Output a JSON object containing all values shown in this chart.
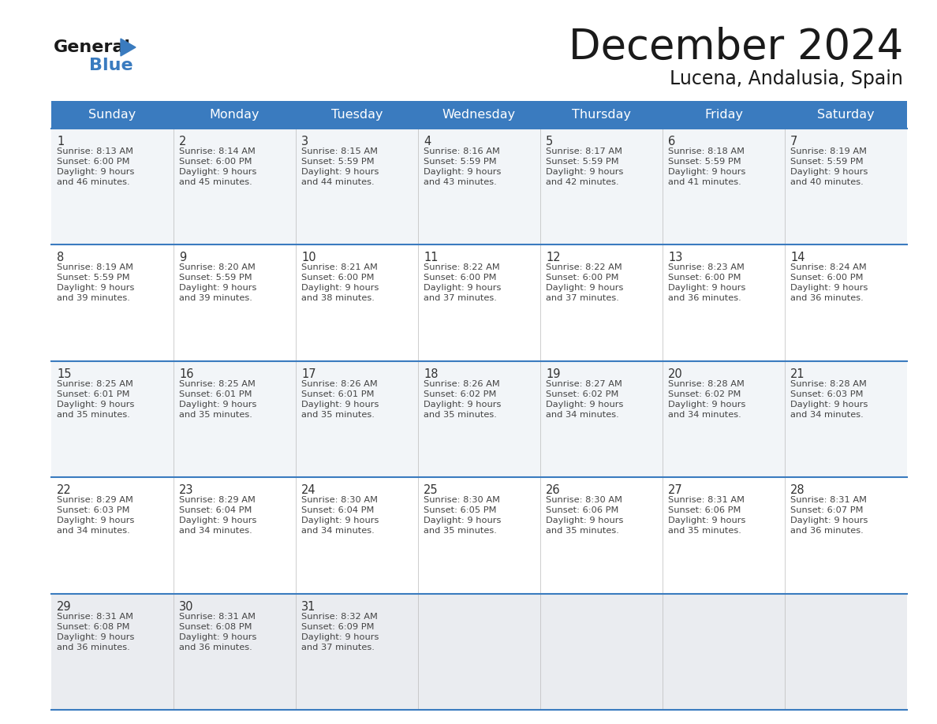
{
  "title": "December 2024",
  "subtitle": "Lucena, Andalusia, Spain",
  "header_bg": "#3a7bbf",
  "header_text_color": "#ffffff",
  "border_color": "#3a7bbf",
  "days_of_week": [
    "Sunday",
    "Monday",
    "Tuesday",
    "Wednesday",
    "Thursday",
    "Friday",
    "Saturday"
  ],
  "weeks": [
    [
      {
        "day": "1",
        "sunrise": "8:13 AM",
        "sunset": "6:00 PM",
        "daylight_h": "9 hours",
        "daylight_m": "and 46 minutes."
      },
      {
        "day": "2",
        "sunrise": "8:14 AM",
        "sunset": "6:00 PM",
        "daylight_h": "9 hours",
        "daylight_m": "and 45 minutes."
      },
      {
        "day": "3",
        "sunrise": "8:15 AM",
        "sunset": "5:59 PM",
        "daylight_h": "9 hours",
        "daylight_m": "and 44 minutes."
      },
      {
        "day": "4",
        "sunrise": "8:16 AM",
        "sunset": "5:59 PM",
        "daylight_h": "9 hours",
        "daylight_m": "and 43 minutes."
      },
      {
        "day": "5",
        "sunrise": "8:17 AM",
        "sunset": "5:59 PM",
        "daylight_h": "9 hours",
        "daylight_m": "and 42 minutes."
      },
      {
        "day": "6",
        "sunrise": "8:18 AM",
        "sunset": "5:59 PM",
        "daylight_h": "9 hours",
        "daylight_m": "and 41 minutes."
      },
      {
        "day": "7",
        "sunrise": "8:19 AM",
        "sunset": "5:59 PM",
        "daylight_h": "9 hours",
        "daylight_m": "and 40 minutes."
      }
    ],
    [
      {
        "day": "8",
        "sunrise": "8:19 AM",
        "sunset": "5:59 PM",
        "daylight_h": "9 hours",
        "daylight_m": "and 39 minutes."
      },
      {
        "day": "9",
        "sunrise": "8:20 AM",
        "sunset": "5:59 PM",
        "daylight_h": "9 hours",
        "daylight_m": "and 39 minutes."
      },
      {
        "day": "10",
        "sunrise": "8:21 AM",
        "sunset": "6:00 PM",
        "daylight_h": "9 hours",
        "daylight_m": "and 38 minutes."
      },
      {
        "day": "11",
        "sunrise": "8:22 AM",
        "sunset": "6:00 PM",
        "daylight_h": "9 hours",
        "daylight_m": "and 37 minutes."
      },
      {
        "day": "12",
        "sunrise": "8:22 AM",
        "sunset": "6:00 PM",
        "daylight_h": "9 hours",
        "daylight_m": "and 37 minutes."
      },
      {
        "day": "13",
        "sunrise": "8:23 AM",
        "sunset": "6:00 PM",
        "daylight_h": "9 hours",
        "daylight_m": "and 36 minutes."
      },
      {
        "day": "14",
        "sunrise": "8:24 AM",
        "sunset": "6:00 PM",
        "daylight_h": "9 hours",
        "daylight_m": "and 36 minutes."
      }
    ],
    [
      {
        "day": "15",
        "sunrise": "8:25 AM",
        "sunset": "6:01 PM",
        "daylight_h": "9 hours",
        "daylight_m": "and 35 minutes."
      },
      {
        "day": "16",
        "sunrise": "8:25 AM",
        "sunset": "6:01 PM",
        "daylight_h": "9 hours",
        "daylight_m": "and 35 minutes."
      },
      {
        "day": "17",
        "sunrise": "8:26 AM",
        "sunset": "6:01 PM",
        "daylight_h": "9 hours",
        "daylight_m": "and 35 minutes."
      },
      {
        "day": "18",
        "sunrise": "8:26 AM",
        "sunset": "6:02 PM",
        "daylight_h": "9 hours",
        "daylight_m": "and 35 minutes."
      },
      {
        "day": "19",
        "sunrise": "8:27 AM",
        "sunset": "6:02 PM",
        "daylight_h": "9 hours",
        "daylight_m": "and 34 minutes."
      },
      {
        "day": "20",
        "sunrise": "8:28 AM",
        "sunset": "6:02 PM",
        "daylight_h": "9 hours",
        "daylight_m": "and 34 minutes."
      },
      {
        "day": "21",
        "sunrise": "8:28 AM",
        "sunset": "6:03 PM",
        "daylight_h": "9 hours",
        "daylight_m": "and 34 minutes."
      }
    ],
    [
      {
        "day": "22",
        "sunrise": "8:29 AM",
        "sunset": "6:03 PM",
        "daylight_h": "9 hours",
        "daylight_m": "and 34 minutes."
      },
      {
        "day": "23",
        "sunrise": "8:29 AM",
        "sunset": "6:04 PM",
        "daylight_h": "9 hours",
        "daylight_m": "and 34 minutes."
      },
      {
        "day": "24",
        "sunrise": "8:30 AM",
        "sunset": "6:04 PM",
        "daylight_h": "9 hours",
        "daylight_m": "and 34 minutes."
      },
      {
        "day": "25",
        "sunrise": "8:30 AM",
        "sunset": "6:05 PM",
        "daylight_h": "9 hours",
        "daylight_m": "and 35 minutes."
      },
      {
        "day": "26",
        "sunrise": "8:30 AM",
        "sunset": "6:06 PM",
        "daylight_h": "9 hours",
        "daylight_m": "and 35 minutes."
      },
      {
        "day": "27",
        "sunrise": "8:31 AM",
        "sunset": "6:06 PM",
        "daylight_h": "9 hours",
        "daylight_m": "and 35 minutes."
      },
      {
        "day": "28",
        "sunrise": "8:31 AM",
        "sunset": "6:07 PM",
        "daylight_h": "9 hours",
        "daylight_m": "and 36 minutes."
      }
    ],
    [
      {
        "day": "29",
        "sunrise": "8:31 AM",
        "sunset": "6:08 PM",
        "daylight_h": "9 hours",
        "daylight_m": "and 36 minutes."
      },
      {
        "day": "30",
        "sunrise": "8:31 AM",
        "sunset": "6:08 PM",
        "daylight_h": "9 hours",
        "daylight_m": "and 36 minutes."
      },
      {
        "day": "31",
        "sunrise": "8:32 AM",
        "sunset": "6:09 PM",
        "daylight_h": "9 hours",
        "daylight_m": "and 37 minutes."
      },
      null,
      null,
      null,
      null
    ]
  ]
}
